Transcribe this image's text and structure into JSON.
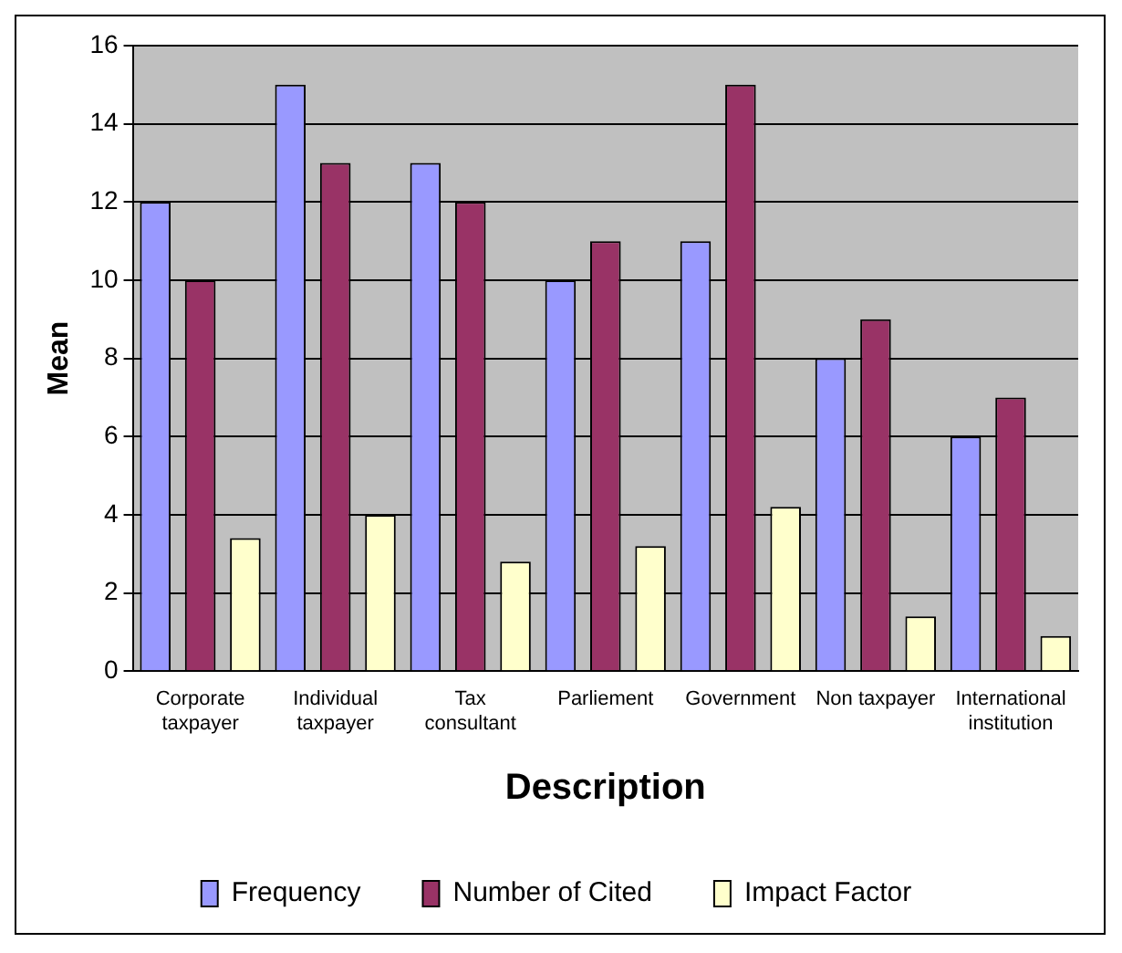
{
  "chart_data": {
    "type": "bar",
    "xlabel": "Description",
    "ylabel": "Mean",
    "categories": [
      "Corporate taxpayer",
      "Individual taxpayer",
      "Tax consultant",
      "Parliement",
      "Government",
      "Non taxpayer",
      "International institution"
    ],
    "series": [
      {
        "name": "Frequency",
        "color": "#9999ff",
        "values": [
          12,
          15,
          13,
          10,
          11,
          8,
          6
        ]
      },
      {
        "name": "Number of Cited",
        "color": "#993366",
        "values": [
          10,
          13,
          12,
          11,
          15,
          9,
          7
        ]
      },
      {
        "name": "Impact Factor",
        "color": "#ffffcc",
        "values": [
          3.4,
          4,
          2.8,
          3.2,
          4.2,
          1.4,
          0.9
        ]
      }
    ],
    "ylim": [
      0,
      16
    ],
    "yticks": [
      0,
      2,
      4,
      6,
      8,
      10,
      12,
      14,
      16
    ],
    "grid": "y",
    "legend": "bottom"
  }
}
